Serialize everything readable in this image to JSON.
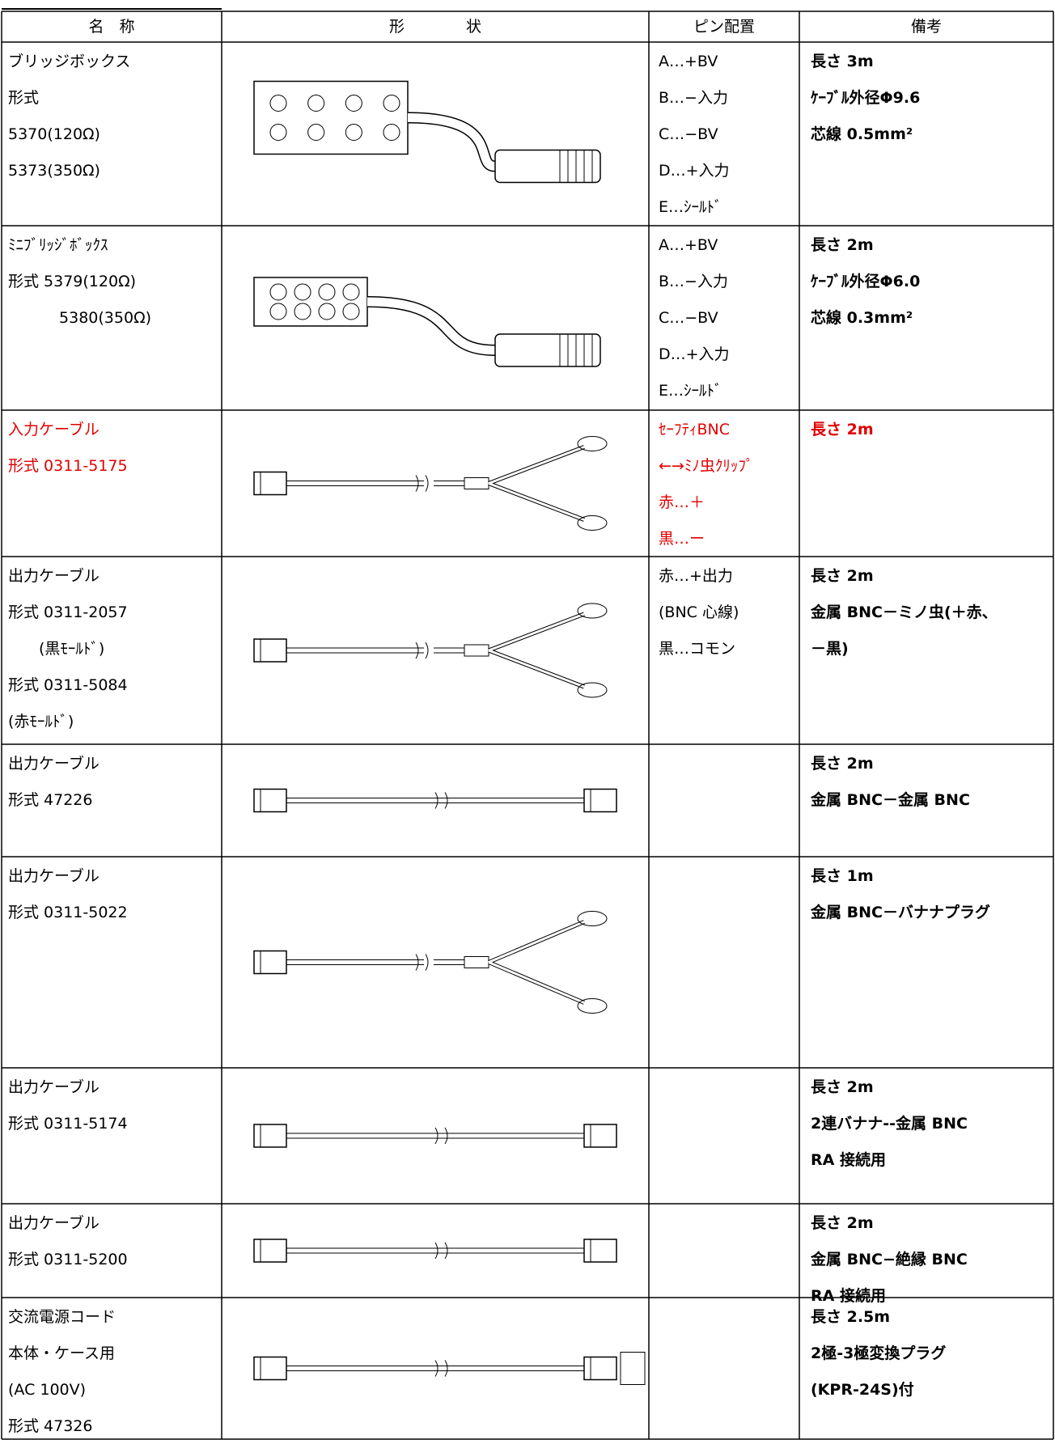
{
  "header": [
    "名　称",
    "形　　　　状",
    "ピン配置",
    "備考"
  ],
  "rows": [
    {
      "name": [
        "ブリッジボックス",
        "形式",
        "5370(120Ω)",
        "5373(350Ω)"
      ],
      "pins": [
        "A…+BV",
        "B…−入力",
        "C…−BV",
        "D…+入力",
        "E…ｼｰﾙﾄﾞ"
      ],
      "notes": [
        "長さ 3m",
        "ｹｰﾌﾞﾙ外径Φ9.6",
        "芯線 0.5mm²"
      ]
    },
    {
      "name": [
        "ﾐﾆﾌﾞﾘｯｼﾞﾎﾞｯｸｽ",
        "形式 5379(120Ω)",
        "　　　 5380(350Ω)"
      ],
      "pins": [
        "A…+BV",
        "B…−入力",
        "C…−BV",
        "D…+入力",
        "E…ｼｰﾙﾄﾞ"
      ],
      "notes": [
        "長さ 2m",
        "ｹｰﾌﾞﾙ外径Φ6.0",
        "芯線 0.3mm²"
      ]
    },
    {
      "name": [
        "入力ケーブル",
        "形式 0311-5175"
      ],
      "pins": [
        "ｾｰﾌﾃｨBNC",
        "←→ﾐﾉ虫ｸﾘｯﾌﾟ",
        "赤…＋",
        "黒…ー"
      ],
      "notes": [
        "長さ 2m"
      ],
      "color": "#e00000"
    },
    {
      "name": [
        "出力ケーブル",
        "形式 0311-2057",
        "　　(黒ﾓｰﾙﾄﾞ)",
        "形式 0311-5084",
        "(赤ﾓｰﾙﾄﾞ)"
      ],
      "pins": [
        "赤…+出力",
        "(BNC 心線)",
        "黒…コモン"
      ],
      "notes": [
        "長さ 2m",
        "金属 BNC－ミノ虫(＋赤、",
        "－黒)"
      ]
    },
    {
      "name": [
        "出力ケーブル",
        "形式 47226"
      ],
      "pins": [],
      "notes": [
        "長さ 2m",
        "金属 BNC－金属 BNC"
      ]
    },
    {
      "name": [
        "出力ケーブル",
        "形式 0311-5022"
      ],
      "pins": [],
      "notes": [
        "長さ 1m",
        "金属 BNC－バナナプラグ"
      ]
    },
    {
      "name": [
        "出力ケーブル",
        "形式 0311-5174"
      ],
      "pins": [],
      "notes": [
        "長さ 2m",
        "2連バナナ--金属 BNC",
        "RA 接続用"
      ]
    },
    {
      "name": [
        "出力ケーブル",
        "形式 0311-5200"
      ],
      "pins": [],
      "notes": [
        "長さ 2m",
        "金属 BNC−絶縁 BNC",
        "RA 接続用"
      ]
    },
    {
      "name": [
        "交流電源コード",
        "本体・ケース用",
        "(AC 100V)",
        "形式 47326"
      ],
      "pins": [],
      "notes": [
        "長さ 2.5m",
        "2極-3極変換プラグ",
        "(KPR-24S)付"
      ]
    }
  ]
}
